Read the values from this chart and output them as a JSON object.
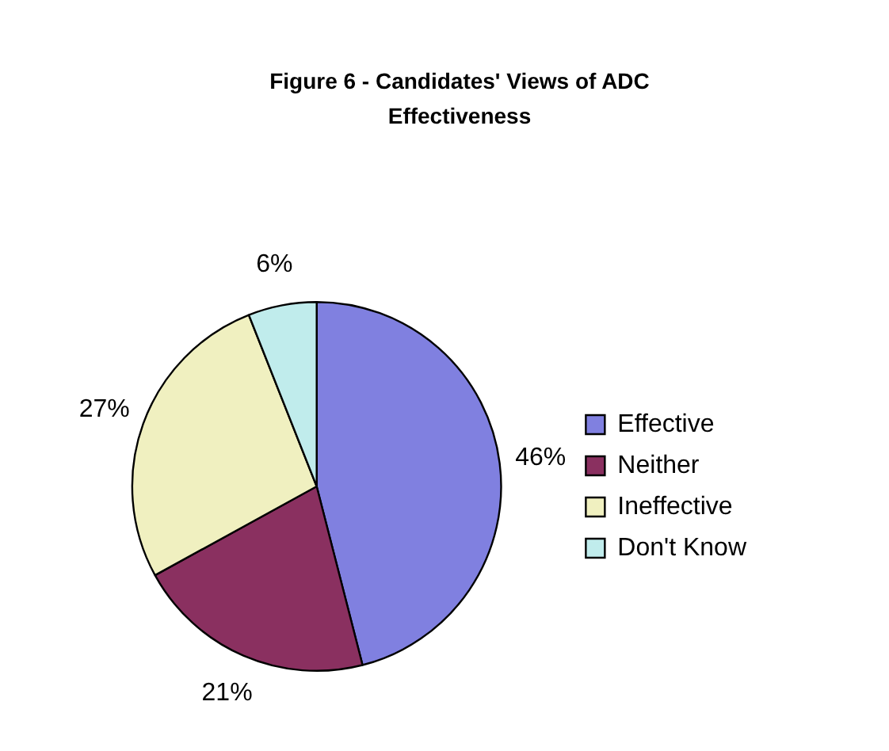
{
  "chart_data": {
    "type": "pie",
    "title": "Figure 6 - Candidates' Views of ADC Effectiveness",
    "categories": [
      "Effective",
      "Neither",
      "Ineffective",
      "Don't Know"
    ],
    "values": [
      46,
      21,
      27,
      6
    ],
    "colors": [
      "#8080e0",
      "#8a3060",
      "#f0f0c0",
      "#c0ecec"
    ],
    "value_labels": [
      "46%",
      "21%",
      "27%",
      "6%"
    ],
    "legend": "right"
  }
}
